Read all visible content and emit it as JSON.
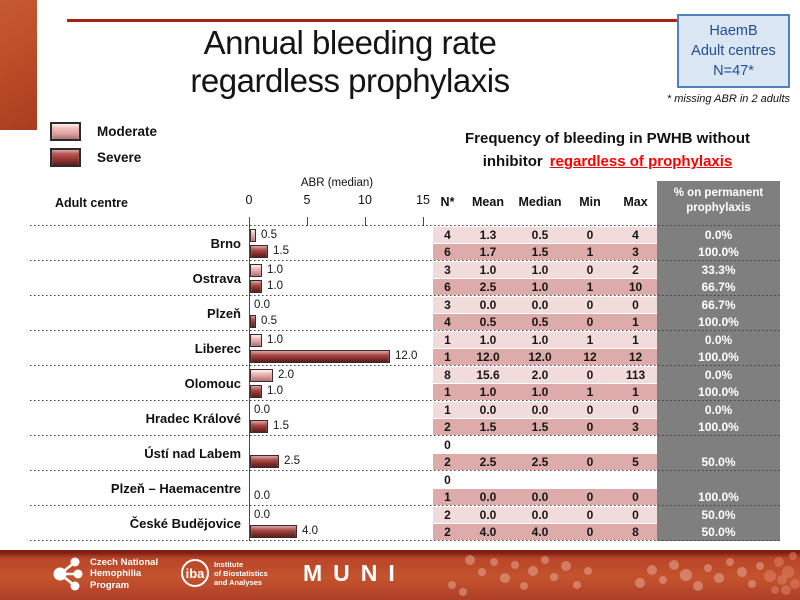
{
  "title": {
    "line1": "Annual bleeding rate",
    "line2": "regardless prophylaxis"
  },
  "badge": {
    "line1": "HaemB",
    "line2": "Adult centres",
    "line3": "N=47*",
    "note": "* missing ABR in 2 adults"
  },
  "legend": {
    "moderate": "Moderate",
    "severe": "Severe"
  },
  "subtitle": {
    "line1": "Frequency of bleeding in PWHB without",
    "line2_black": "inhibitor",
    "line2_red": "regardless of prophylaxis"
  },
  "chart": {
    "row_header": "Adult centre",
    "axis_label": "ABR (median)",
    "ticks": [
      "0",
      "5",
      "10",
      "15"
    ],
    "table_headers": [
      "N*",
      "Mean",
      "Median",
      "Min",
      "Max"
    ],
    "pct_header": "% on permanent prophylaxis"
  },
  "chart_data": {
    "type": "bar",
    "orientation": "horizontal",
    "title": "Annual bleeding rate regardless prophylaxis",
    "xlabel": "ABR (median)",
    "xlim": [
      0,
      15
    ],
    "xticks": [
      0,
      5,
      10,
      15
    ],
    "categories": [
      "Brno",
      "Ostrava",
      "Plzeň",
      "Liberec",
      "Olomouc",
      "Hradec Králové",
      "Ústí nad Labem",
      "Plzeň – Haemacentre",
      "České Budějovice"
    ],
    "series": [
      {
        "name": "Moderate",
        "values": [
          0.5,
          1.0,
          0.0,
          1.0,
          2.0,
          0.0,
          null,
          null,
          0.0
        ]
      },
      {
        "name": "Severe",
        "values": [
          1.5,
          1.0,
          0.5,
          12.0,
          1.0,
          1.5,
          2.5,
          0.0,
          4.0
        ]
      }
    ],
    "legend_position": "upper-left"
  },
  "rows": [
    {
      "name": "Brno",
      "m": {
        "bar": 0.5,
        "label": "0.5",
        "cells": [
          "4",
          "1.3",
          "0.5",
          "0",
          "4"
        ],
        "pct": "0.0%"
      },
      "s": {
        "bar": 1.5,
        "label": "1.5",
        "cells": [
          "6",
          "1.7",
          "1.5",
          "1",
          "3"
        ],
        "pct": "100.0%"
      }
    },
    {
      "name": "Ostrava",
      "m": {
        "bar": 1.0,
        "label": "1.0",
        "cells": [
          "3",
          "1.0",
          "1.0",
          "0",
          "2"
        ],
        "pct": "33.3%"
      },
      "s": {
        "bar": 1.0,
        "label": "1.0",
        "cells": [
          "6",
          "2.5",
          "1.0",
          "1",
          "10"
        ],
        "pct": "66.7%"
      }
    },
    {
      "name": "Plzeň",
      "m": {
        "bar": 0.0,
        "label": "0.0",
        "cells": [
          "3",
          "0.0",
          "0.0",
          "0",
          "0"
        ],
        "pct": "66.7%"
      },
      "s": {
        "bar": 0.5,
        "label": "0.5",
        "cells": [
          "4",
          "0.5",
          "0.5",
          "0",
          "1"
        ],
        "pct": "100.0%"
      }
    },
    {
      "name": "Liberec",
      "m": {
        "bar": 1.0,
        "label": "1.0",
        "cells": [
          "1",
          "1.0",
          "1.0",
          "1",
          "1"
        ],
        "pct": "0.0%"
      },
      "s": {
        "bar": 12.0,
        "label": "12.0",
        "cells": [
          "1",
          "12.0",
          "12.0",
          "12",
          "12"
        ],
        "pct": "100.0%"
      }
    },
    {
      "name": "Olomouc",
      "m": {
        "bar": 2.0,
        "label": "2.0",
        "cells": [
          "8",
          "15.6",
          "2.0",
          "0",
          "113"
        ],
        "pct": "0.0%"
      },
      "s": {
        "bar": 1.0,
        "label": "1.0",
        "cells": [
          "1",
          "1.0",
          "1.0",
          "1",
          "1"
        ],
        "pct": "100.0%"
      }
    },
    {
      "name": "Hradec Králové",
      "m": {
        "bar": 0.0,
        "label": "0.0",
        "cells": [
          "1",
          "0.0",
          "0.0",
          "0",
          "0"
        ],
        "pct": "0.0%"
      },
      "s": {
        "bar": 1.5,
        "label": "1.5",
        "cells": [
          "2",
          "1.5",
          "1.5",
          "0",
          "3"
        ],
        "pct": "100.0%"
      }
    },
    {
      "name": "Ústí nad Labem",
      "m": {
        "bar": null,
        "label": "",
        "cells": [
          "0",
          "",
          "",
          "",
          ""
        ],
        "pct": "",
        "empty": true
      },
      "s": {
        "bar": 2.5,
        "label": "2.5",
        "cells": [
          "2",
          "2.5",
          "2.5",
          "0",
          "5"
        ],
        "pct": "50.0%"
      }
    },
    {
      "name": "Plzeň – Haemacentre",
      "m": {
        "bar": null,
        "label": "",
        "cells": [
          "0",
          "",
          "",
          "",
          ""
        ],
        "pct": "",
        "empty": true
      },
      "s": {
        "bar": 0.0,
        "label": "0.0",
        "cells": [
          "1",
          "0.0",
          "0.0",
          "0",
          "0"
        ],
        "pct": "100.0%"
      }
    },
    {
      "name": "České Budějovice",
      "m": {
        "bar": 0.0,
        "label": "0.0",
        "cells": [
          "2",
          "0.0",
          "0.0",
          "0",
          "0"
        ],
        "pct": "50.0%"
      },
      "s": {
        "bar": 4.0,
        "label": "4.0",
        "cells": [
          "2",
          "4.0",
          "4.0",
          "0",
          "8"
        ],
        "pct": "50.0%"
      }
    }
  ],
  "colors": {
    "accent": "#bf4b27",
    "top_line": "#a52317",
    "badge_bg": "#dbe6f4",
    "badge_border": "#4f81bd",
    "badge_text": "#1f4e96",
    "moderate": "#e7a8a6",
    "severe": "#a23c3a",
    "table_light": "#f2dcdb",
    "table_dark": "#ddaba9",
    "pct_bg": "#7f7f7f",
    "subtitle_red": "#ff0000",
    "footer_bg": "#c4532e"
  },
  "footer": {
    "cnhp": {
      "line1": "Czech National",
      "line2": "Hemophilia",
      "line3": "Program"
    },
    "iba": {
      "logo": "iba",
      "line1": "Institute",
      "line2": "of Biostatistics",
      "line3": "and Analyses"
    },
    "muni": "MUNI"
  }
}
